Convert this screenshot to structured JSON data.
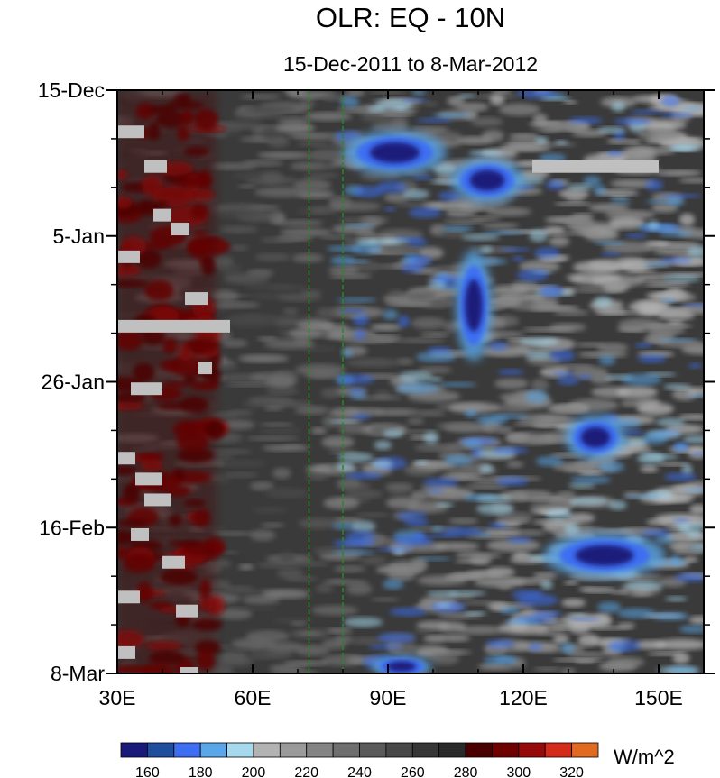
{
  "chart_data": {
    "type": "heatmap",
    "title": "OLR: EQ - 10N",
    "subtitle": "15-Dec-2011 to 8-Mar-2012",
    "colorbar_unit": "W/m^2",
    "x_axis": {
      "range": [
        30,
        160
      ],
      "ticks": [
        30,
        60,
        90,
        120,
        150
      ],
      "tick_labels": [
        "30E",
        "60E",
        "90E",
        "120E",
        "150E"
      ]
    },
    "y_axis": {
      "range": [
        "15-Dec-2011",
        "8-Mar-2012"
      ],
      "ticks": [
        "15-Dec",
        "5-Jan",
        "26-Jan",
        "16-Feb",
        "8-Mar"
      ],
      "tick_labels": [
        "15-Dec",
        "5-Jan",
        "26-Jan",
        "16-Feb",
        "8-Mar"
      ],
      "reversed": true
    },
    "reference_lines_longitude": [
      72.5,
      80
    ],
    "reference_line_color": "#228b22",
    "missing_color": "#c0c0c0",
    "contour_levels": [
      160,
      170,
      180,
      190,
      200,
      210,
      220,
      230,
      240,
      250,
      260,
      270,
      280,
      290,
      300,
      310,
      320
    ],
    "colorbar_labels": [
      "160",
      "180",
      "200",
      "220",
      "240",
      "260",
      "280",
      "300",
      "320"
    ],
    "colorbar_colors": [
      "#1a1a7a",
      "#1f4e9c",
      "#3d6ef2",
      "#5aa6e8",
      "#a6d8ee",
      "#b3b3b3",
      "#9a9a9a",
      "#848484",
      "#6e6e6e",
      "#5a5a5a",
      "#484848",
      "#363636",
      "#2a2a2a",
      "#4a0000",
      "#6e0000",
      "#960a0a",
      "#d42a1a",
      "#e06a22"
    ],
    "features": [
      {
        "kind": "convective_low_olr",
        "lon": [
          83,
          100
        ],
        "time": [
          "22-Dec-2011",
          "26-Dec-2011"
        ],
        "min_value": 160
      },
      {
        "kind": "convective_low_olr",
        "lon": [
          106,
          118
        ],
        "time": [
          "26-Dec-2011",
          "30-Dec-2011"
        ],
        "min_value": 160
      },
      {
        "kind": "convective_low_olr",
        "lon": [
          106,
          112
        ],
        "time": [
          "10-Jan-2012",
          "20-Jan-2012"
        ],
        "min_value": 180
      },
      {
        "kind": "convective_low_olr",
        "lon": [
          131,
          141
        ],
        "time": [
          "1-Feb-2012",
          "5-Feb-2012"
        ],
        "min_value": 180
      },
      {
        "kind": "convective_low_olr",
        "lon": [
          128,
          148
        ],
        "time": [
          "18-Feb-2012",
          "22-Feb-2012"
        ],
        "min_value": 160
      },
      {
        "kind": "convective_low_olr",
        "lon": [
          88,
          98
        ],
        "time": [
          "6-Mar-2012",
          "8-Mar-2012"
        ],
        "min_value": 160
      },
      {
        "kind": "high_olr_dry",
        "lon": [
          30,
          52
        ],
        "time": [
          "15-Dec-2011",
          "8-Mar-2012"
        ],
        "max_value": 320
      }
    ]
  }
}
